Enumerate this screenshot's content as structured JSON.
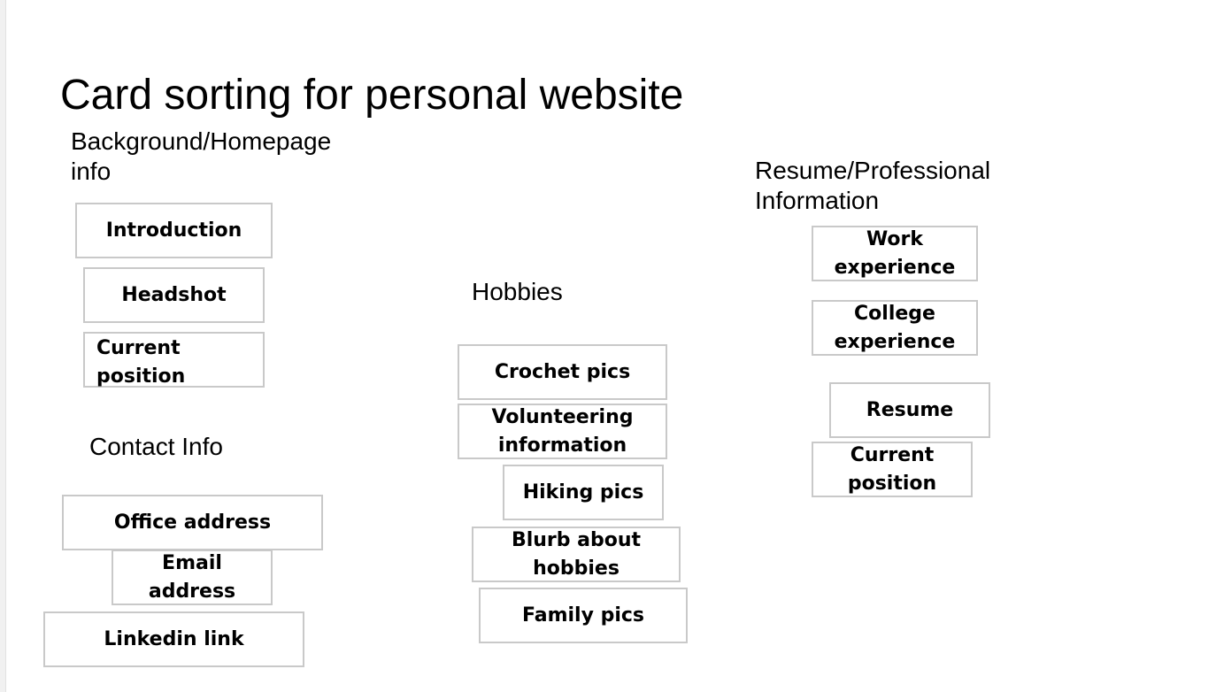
{
  "title": "Card sorting for personal website",
  "groups": {
    "background": {
      "heading": "Background/Homepage info",
      "cards": [
        "Introduction",
        "Headshot",
        "Current position"
      ]
    },
    "contact": {
      "heading": "Contact Info",
      "cards": [
        "Office address",
        "Email address",
        "Linkedin link"
      ]
    },
    "hobbies": {
      "heading": "Hobbies",
      "cards": [
        "Crochet pics",
        "Volunteering information",
        "Hiking pics",
        "Blurb about hobbies",
        "Family pics"
      ]
    },
    "resume": {
      "heading": "Resume/Professional Information",
      "cards": [
        "Work experience",
        "College experience",
        "Resume",
        "Current position"
      ]
    }
  }
}
